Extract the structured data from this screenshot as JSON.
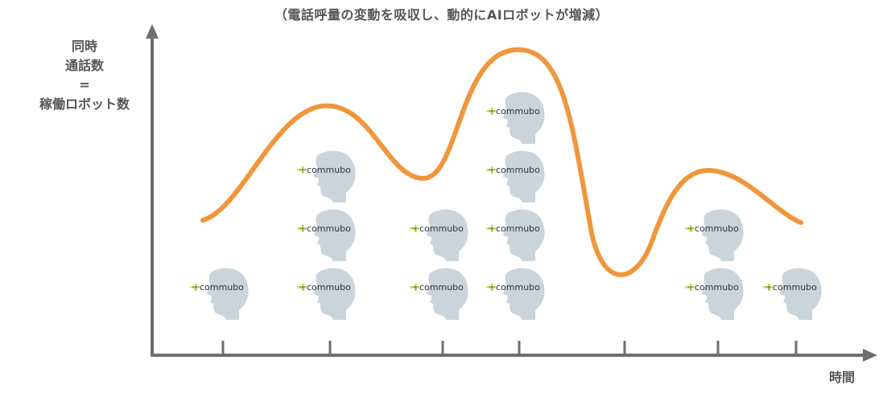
{
  "caption": "（電話呼量の変動を吸収し、動的にAIロボットが増減）",
  "y_axis": {
    "line1": "同時",
    "line2": "通話数",
    "line3": "=",
    "line4": "稼働ロボット数"
  },
  "x_axis": {
    "label": "時間"
  },
  "robot": {
    "brand": "commubo",
    "icon": "robot-head-icon"
  },
  "robot_columns": [
    1,
    3,
    2,
    4,
    0,
    2,
    1
  ],
  "colors": {
    "curve": "#F0963C",
    "axis": "#6E6E6E",
    "head": "#C9D5DA",
    "text": "#555555"
  }
}
